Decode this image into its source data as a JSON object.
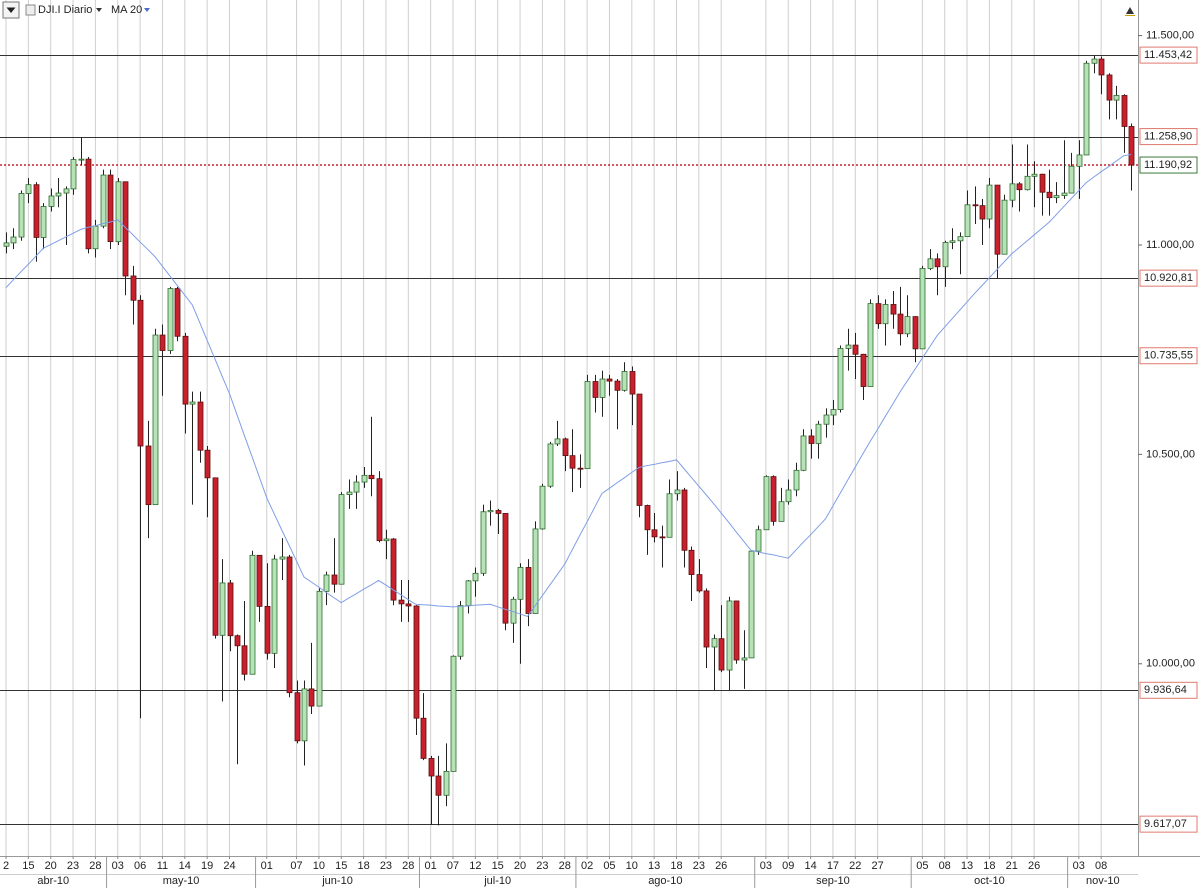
{
  "chart_data": {
    "type": "candlestick",
    "title": "DJI.I Diario",
    "indicator": {
      "name": "MA 20",
      "color": "#7f9ee6",
      "values": [
        10898,
        10917,
        10936,
        10954,
        10973,
        10992,
        11001,
        11010,
        11019,
        11028,
        11037,
        11042,
        11046,
        11051,
        11055,
        11060,
        11042,
        11025,
        11007,
        10990,
        10972,
        10949,
        10926,
        10903,
        10880,
        10857,
        10815,
        10772,
        10730,
        10687,
        10645,
        10595,
        10545,
        10496,
        10446,
        10396,
        10358,
        10320,
        10283,
        10245,
        10207,
        10195,
        10183,
        10170,
        10158,
        10146,
        10157,
        10167,
        10178,
        10188,
        10199,
        10188,
        10176,
        10165,
        10153,
        10142,
        10141,
        10140,
        10138,
        10137,
        10136,
        10137,
        10138,
        10140,
        10141,
        10142,
        10136,
        10130,
        10125,
        10119,
        10113,
        10138,
        10163,
        10188,
        10213,
        10238,
        10272,
        10306,
        10339,
        10373,
        10407,
        10419,
        10432,
        10444,
        10457,
        10469,
        10473,
        10476,
        10480,
        10483,
        10487,
        10466,
        10445,
        10424,
        10403,
        10382,
        10360,
        10338,
        10315,
        10293,
        10271,
        10267,
        10263,
        10260,
        10256,
        10252,
        10271,
        10290,
        10308,
        10327,
        10346,
        10377,
        10408,
        10439,
        10470,
        10501,
        10531,
        10560,
        10590,
        10619,
        10649,
        10676,
        10703,
        10730,
        10757,
        10784,
        10804,
        10824,
        10844,
        10864,
        10884,
        10903,
        10922,
        10941,
        10960,
        10979,
        10994,
        11009,
        11024,
        11039,
        11054,
        11073,
        11092,
        11111,
        11130,
        11149,
        11162,
        11175,
        11187,
        11200,
        11213,
        11216
      ]
    },
    "categories": [
      "2",
      null,
      null,
      "15",
      null,
      null,
      "20",
      null,
      null,
      "23",
      null,
      null,
      "28",
      null,
      null,
      "03",
      null,
      null,
      "06",
      null,
      null,
      "11",
      null,
      null,
      "14",
      null,
      null,
      "19",
      null,
      null,
      "24",
      null,
      null,
      null,
      null,
      "01",
      null,
      null,
      null,
      "07",
      null,
      null,
      "10",
      null,
      null,
      "15",
      null,
      null,
      "18",
      null,
      null,
      "23",
      null,
      null,
      "28",
      null,
      null,
      "01",
      null,
      null,
      "07",
      null,
      null,
      "12",
      null,
      null,
      "15",
      null,
      null,
      "20",
      null,
      null,
      "23",
      null,
      null,
      "28",
      null,
      null,
      "02",
      null,
      null,
      "05",
      null,
      null,
      "10",
      null,
      null,
      "13",
      null,
      null,
      "18",
      null,
      null,
      "23",
      null,
      null,
      "26",
      null,
      null,
      null,
      null,
      null,
      "03",
      null,
      null,
      "09",
      null,
      null,
      "14",
      null,
      null,
      "17",
      null,
      null,
      "22",
      null,
      null,
      "27",
      null,
      null,
      null,
      null,
      null,
      "05",
      null,
      null,
      "08",
      null,
      null,
      "13",
      null,
      null,
      "18",
      null,
      null,
      "21",
      null,
      null,
      "26",
      null,
      null,
      null,
      null,
      null,
      "03",
      null,
      null,
      "08",
      null,
      null,
      null,
      null
    ],
    "months": [
      "abr-10",
      "may-10",
      "jun-10",
      "jul-10",
      "ago-10",
      "sep-10",
      "oct-10",
      "nov-10"
    ],
    "open": [
      10997,
      11005,
      11019,
      11123,
      11144,
      11018,
      11092,
      11117,
      11124,
      11134,
      11204,
      11205,
      10991,
      11045,
      11167,
      11008,
      11151,
      10926,
      10868,
      10520,
      10380,
      10785,
      10748,
      10896,
      10782,
      10620,
      10625,
      10510,
      10444,
      10068,
      10193,
      10067,
      10043,
      9975,
      10259,
      10137,
      10025,
      10250,
      10255,
      9931,
      9816,
      9940,
      9899,
      10173,
      10212,
      10190,
      10404,
      10410,
      10434,
      10450,
      10442,
      10294,
      10298,
      10152,
      10143,
      10138,
      9870,
      9774,
      9732,
      9686,
      9743,
      10018,
      10139,
      10198,
      10216,
      10363,
      10366,
      10359,
      10097,
      10154,
      10230,
      10120,
      10322,
      10424,
      10525,
      10537,
      10497,
      10467,
      10466,
      10674,
      10636,
      10680,
      10675,
      10653,
      10698,
      10644,
      10378,
      10320,
      10303,
      10302,
      10406,
      10415,
      10271,
      10213,
      10174,
      10040,
      10060,
      9985,
      10150,
      10009,
      10014,
      10269,
      10320,
      10447,
      10340,
      10387,
      10415,
      10462,
      10544,
      10526,
      10572,
      10594,
      10607,
      10753,
      10761,
      10739,
      10662,
      10860,
      10812,
      10858,
      10835,
      10788,
      10829,
      10752,
      10944,
      10967,
      10948,
      11006,
      11010,
      11020,
      11096,
      11094,
      11062,
      11143,
      10978,
      11107,
      11146,
      11132,
      11164,
      11169,
      11126,
      11113,
      11118,
      11124,
      11188,
      11215,
      11434,
      11444,
      11406,
      11346,
      11357,
      11283
    ],
    "high": [
      11030,
      11040,
      11130,
      11160,
      11150,
      11100,
      11135,
      11160,
      11140,
      11210,
      11258,
      11210,
      11060,
      11180,
      11180,
      11160,
      11151,
      10950,
      10880,
      10580,
      10800,
      10810,
      10900,
      10900,
      10790,
      10650,
      10650,
      10520,
      10444,
      10250,
      10200,
      10070,
      10150,
      10270,
      10259,
      10240,
      10260,
      10300,
      10260,
      9960,
      9960,
      10050,
      10180,
      10220,
      10300,
      10410,
      10440,
      10450,
      10470,
      10590,
      10460,
      10320,
      10300,
      10200,
      10200,
      10140,
      9930,
      9780,
      9780,
      9810,
      10020,
      10150,
      10200,
      10230,
      10380,
      10390,
      10370,
      10360,
      10160,
      10240,
      10250,
      10340,
      10430,
      10530,
      10580,
      10540,
      10560,
      10500,
      10690,
      10690,
      10700,
      10690,
      10680,
      10720,
      10710,
      10644,
      10380,
      10360,
      10330,
      10440,
      10460,
      10420,
      10280,
      10250,
      10180,
      10070,
      10140,
      10160,
      10150,
      10080,
      10270,
      10330,
      10450,
      10450,
      10420,
      10440,
      10480,
      10560,
      10560,
      10580,
      10610,
      10630,
      10760,
      10800,
      10790,
      10740,
      10870,
      10880,
      10870,
      10890,
      10900,
      10880,
      10830,
      10950,
      10990,
      10980,
      11010,
      11040,
      11030,
      11130,
      11140,
      11110,
      11160,
      11143,
      11120,
      11240,
      11150,
      11240,
      11200,
      11170,
      11180,
      11150,
      11250,
      11220,
      11250,
      11440,
      11453,
      11450,
      11410,
      11380,
      11360,
      11290
    ],
    "low": [
      10980,
      10990,
      11010,
      11100,
      10960,
      10990,
      11080,
      11090,
      11000,
      11120,
      11190,
      10980,
      10970,
      11040,
      10990,
      11000,
      10880,
      10810,
      9870,
      10300,
      10380,
      10640,
      10740,
      10770,
      10550,
      10380,
      10480,
      10350,
      10060,
      9910,
      10030,
      9760,
      9960,
      9975,
      10100,
      10010,
      9990,
      10200,
      9920,
      9810,
      9757,
      9880,
      9899,
      10140,
      10170,
      10190,
      10370,
      10370,
      10420,
      10400,
      10290,
      10250,
      10140,
      10100,
      10100,
      9830,
      9770,
      9615,
      9614,
      9660,
      9743,
      10010,
      10120,
      10160,
      10210,
      10330,
      10310,
      10080,
      10050,
      10000,
      10090,
      10120,
      10320,
      10420,
      10520,
      10460,
      10410,
      10420,
      10466,
      10600,
      10590,
      10640,
      10560,
      10650,
      10570,
      10350,
      10260,
      10290,
      10230,
      10302,
      10390,
      10230,
      10150,
      10170,
      9990,
      9936,
      9980,
      9937,
      10000,
      9940,
      10014,
      10260,
      10320,
      10330,
      10340,
      10380,
      10400,
      10460,
      10490,
      10490,
      10540,
      10570,
      10600,
      10700,
      10680,
      10630,
      10662,
      10800,
      10760,
      10800,
      10760,
      10780,
      10720,
      10752,
      10940,
      10880,
      10900,
      10990,
      10930,
      11020,
      11050,
      11000,
      11040,
      10920,
      10978,
      11090,
      11080,
      11130,
      11090,
      11070,
      11070,
      11100,
      11110,
      11124,
      11110,
      11215,
      11410,
      11360,
      11300,
      11300,
      11220,
      11130
    ],
    "close": [
      11005,
      11019,
      11123,
      11144,
      11018,
      11092,
      11117,
      11124,
      11134,
      11204,
      11205,
      10991,
      11045,
      11167,
      11008,
      11151,
      10926,
      10868,
      10520,
      10380,
      10785,
      10748,
      10896,
      10782,
      10620,
      10625,
      10510,
      10444,
      10068,
      10193,
      10067,
      10043,
      9975,
      10259,
      10137,
      10025,
      10250,
      10255,
      9931,
      9816,
      9940,
      9899,
      10173,
      10212,
      10190,
      10404,
      10410,
      10434,
      10450,
      10442,
      10294,
      10298,
      10152,
      10143,
      10138,
      9870,
      9774,
      9732,
      9686,
      9743,
      10018,
      10139,
      10198,
      10216,
      10363,
      10366,
      10359,
      10097,
      10154,
      10230,
      10120,
      10322,
      10424,
      10525,
      10537,
      10497,
      10467,
      10466,
      10674,
      10636,
      10680,
      10675,
      10653,
      10698,
      10644,
      10378,
      10320,
      10303,
      10302,
      10406,
      10415,
      10271,
      10213,
      10174,
      10040,
      10060,
      9985,
      10150,
      10009,
      10014,
      10269,
      10320,
      10447,
      10340,
      10387,
      10415,
      10462,
      10544,
      10526,
      10572,
      10594,
      10607,
      10753,
      10761,
      10739,
      10662,
      10860,
      10812,
      10858,
      10835,
      10788,
      10829,
      10752,
      10944,
      10967,
      10948,
      11006,
      11010,
      11020,
      11096,
      11094,
      11062,
      11143,
      10978,
      11107,
      11146,
      11132,
      11164,
      11169,
      11126,
      11113,
      11118,
      11124,
      11188,
      11215,
      11434,
      11444,
      11406,
      11346,
      11357,
      11283,
      11190.92
    ],
    "up_color": "#b5e3b5",
    "up_border": "#2f6b2f",
    "down_color": "#c8202c",
    "down_border": "#5a1010",
    "ylim": [
      9541,
      11585
    ],
    "yticks": [
      {
        "value": 11500,
        "label": "11.500,00"
      },
      {
        "value": 11000,
        "label": "11.000,00"
      },
      {
        "value": 10500,
        "label": "10.500,00"
      },
      {
        "value": 10000,
        "label": "10.000,00"
      }
    ],
    "levels": [
      {
        "value": 11453.42,
        "label": "11.453,42"
      },
      {
        "value": 11258.9,
        "label": "11.258,90"
      },
      {
        "value": 10920.81,
        "label": "10.920,81"
      },
      {
        "value": 10735.55,
        "label": "10.735,55"
      },
      {
        "value": 9936.64,
        "label": "9.936,64"
      },
      {
        "value": 9617.07,
        "label": "9.617,07"
      }
    ],
    "last_price": {
      "value": 11190.92,
      "label": "11.190,92",
      "color": "#c8202c"
    },
    "grid": true
  }
}
